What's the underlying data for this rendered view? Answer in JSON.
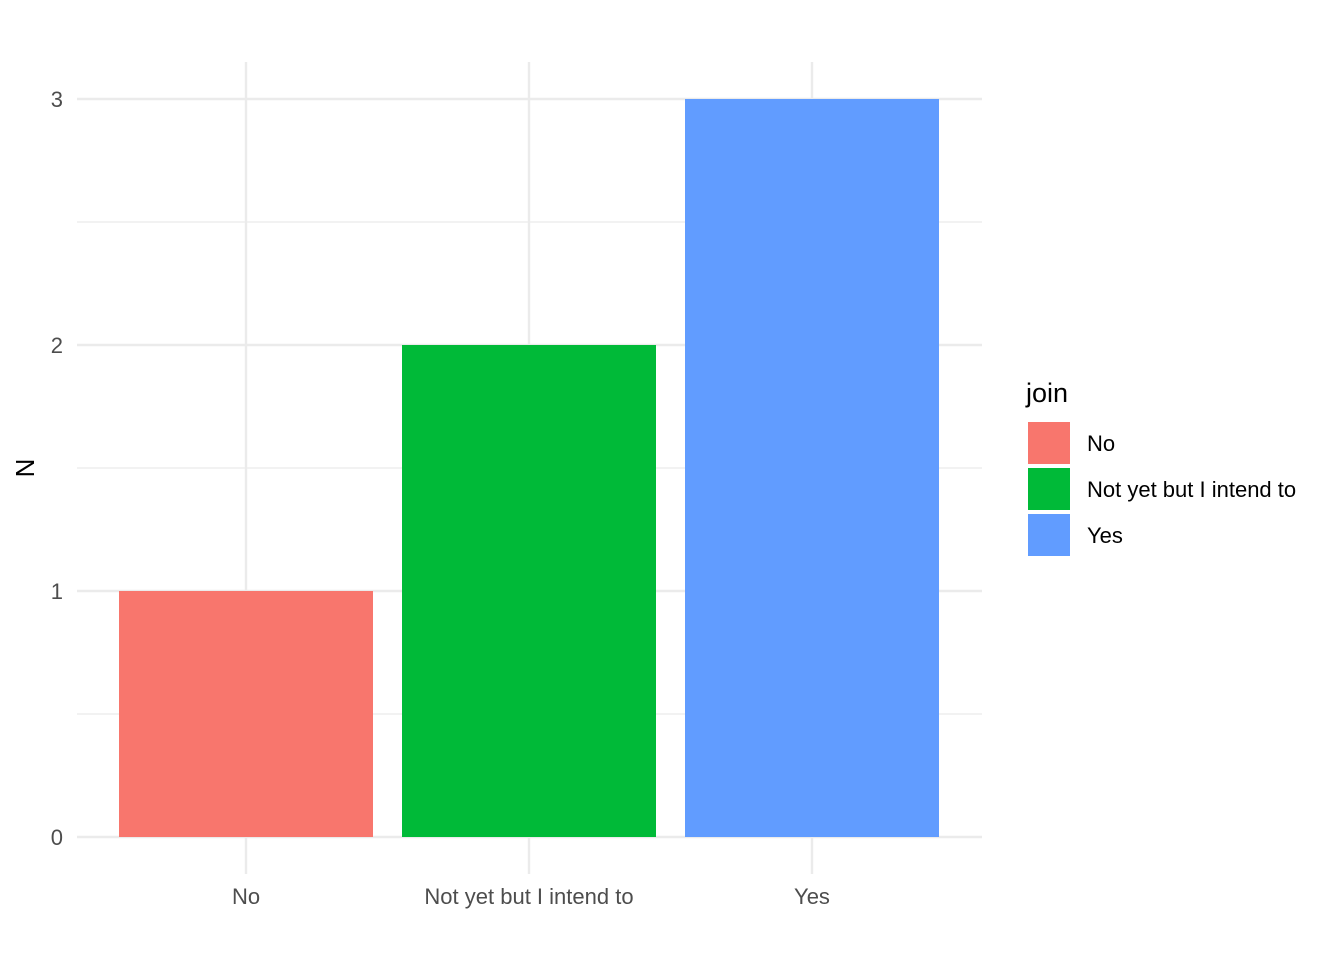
{
  "chart_data": {
    "type": "bar",
    "categories": [
      "No",
      "Not yet but I intend to",
      "Yes"
    ],
    "values": [
      1,
      2,
      3
    ],
    "colors": [
      "#F8766D",
      "#00BA38",
      "#619CFF"
    ],
    "title": "",
    "xlabel": "",
    "ylabel": "N",
    "ylim": [
      0,
      3
    ],
    "y_ticks": [
      0,
      1,
      2,
      3
    ],
    "grid": true,
    "legend": {
      "title": "join",
      "placement": "right",
      "entries": [
        "No",
        "Not yet but I intend to",
        "Yes"
      ]
    }
  }
}
